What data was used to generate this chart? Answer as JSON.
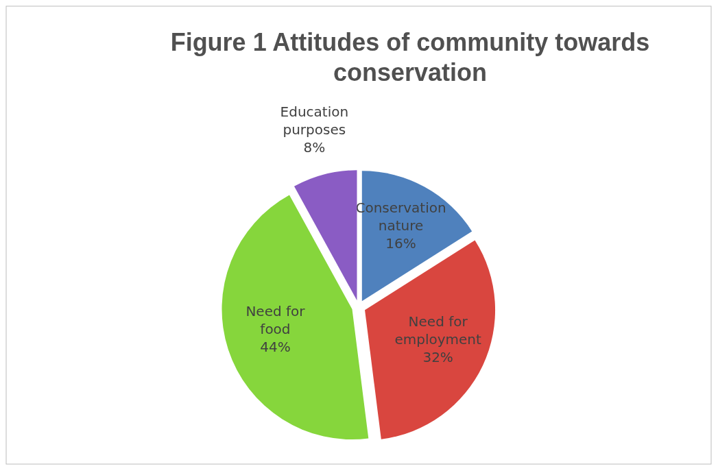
{
  "chart_data": {
    "type": "pie",
    "title": "Figure 1 Attitudes of community towards conservation",
    "categories": [
      "Conservation nature",
      "Need for employment",
      "Need for food",
      "Education purposes"
    ],
    "values": [
      16,
      32,
      44,
      8
    ],
    "colors": [
      "#4f81bd",
      "#d9463f",
      "#86d63c",
      "#8a5cc4"
    ],
    "value_labels": [
      "16%",
      "32%",
      "44%",
      "8%"
    ],
    "legend": false
  }
}
